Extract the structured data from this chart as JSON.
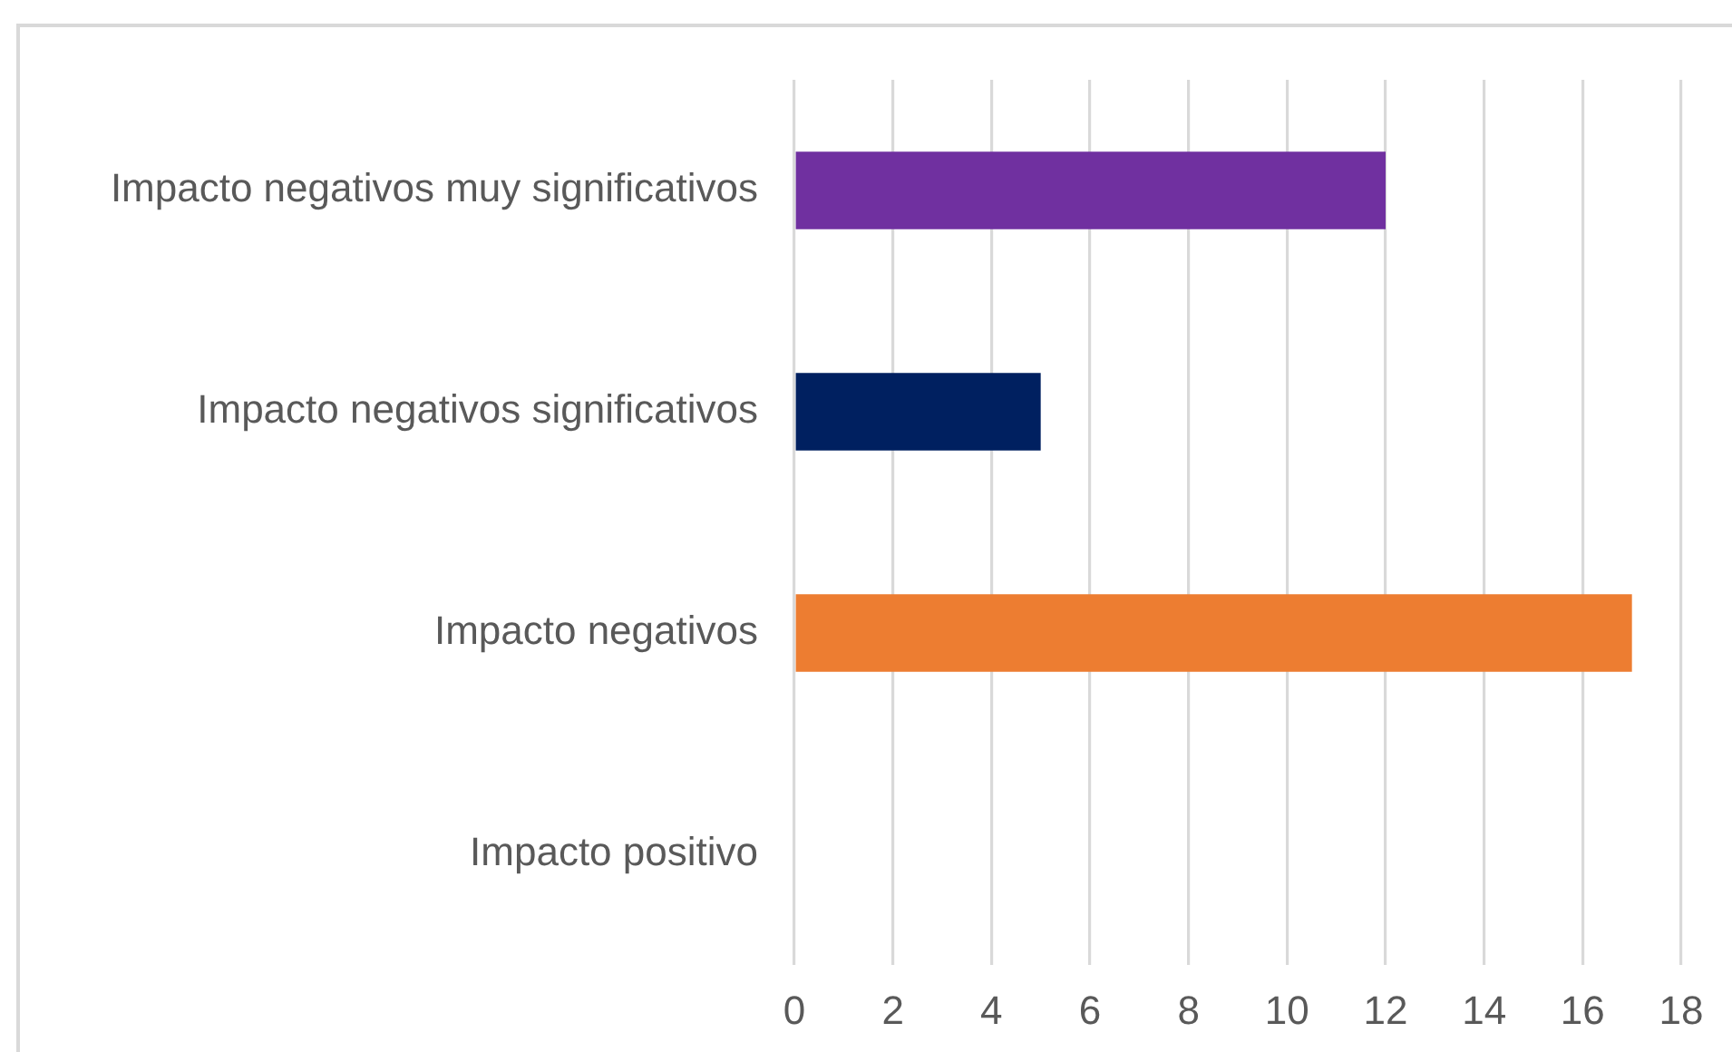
{
  "chart_data": {
    "type": "bar",
    "orientation": "horizontal",
    "categories": [
      "Impacto negativos muy significativos",
      "Impacto negativos significativos",
      "Impacto negativos",
      "Impacto positivo"
    ],
    "values": [
      12,
      5,
      17,
      0
    ],
    "colors": [
      "#7030a0",
      "#002060",
      "#ed7d31",
      null
    ],
    "xlim": [
      0,
      18
    ],
    "xticks": [
      0,
      2,
      4,
      6,
      8,
      10,
      12,
      14,
      16,
      18
    ],
    "grid": "x"
  }
}
